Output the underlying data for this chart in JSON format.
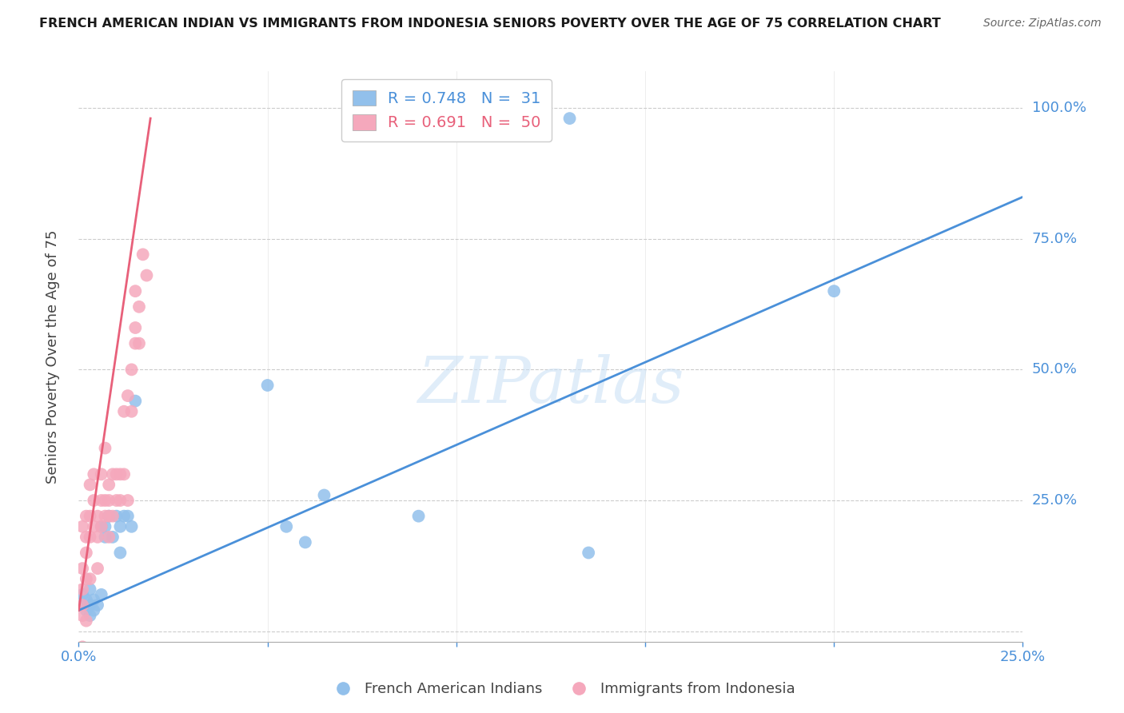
{
  "title": "FRENCH AMERICAN INDIAN VS IMMIGRANTS FROM INDONESIA SENIORS POVERTY OVER THE AGE OF 75 CORRELATION CHART",
  "source": "Source: ZipAtlas.com",
  "ylabel": "Seniors Poverty Over the Age of 75",
  "xlim": [
    0,
    0.25
  ],
  "ylim": [
    -0.02,
    1.07
  ],
  "xticks": [
    0.0,
    0.05,
    0.1,
    0.15,
    0.2,
    0.25
  ],
  "yticks": [
    0.0,
    0.25,
    0.5,
    0.75,
    1.0
  ],
  "ytick_labels": [
    "",
    "25.0%",
    "50.0%",
    "75.0%",
    "100.0%"
  ],
  "watermark": "ZIPatlas",
  "blue_color": "#92C0EB",
  "pink_color": "#F5A8BC",
  "blue_line_color": "#4A90D9",
  "pink_line_color": "#E8607A",
  "blue_R": 0.748,
  "blue_N": 31,
  "pink_R": 0.691,
  "pink_N": 50,
  "blue_label": "French American Indians",
  "pink_label": "Immigrants from Indonesia",
  "blue_x": [
    0.001,
    0.001,
    0.002,
    0.002,
    0.003,
    0.003,
    0.003,
    0.004,
    0.004,
    0.005,
    0.006,
    0.006,
    0.007,
    0.007,
    0.008,
    0.009,
    0.01,
    0.011,
    0.011,
    0.012,
    0.013,
    0.014,
    0.015,
    0.05,
    0.055,
    0.06,
    0.065,
    0.09,
    0.2,
    0.13,
    0.135
  ],
  "blue_y": [
    0.05,
    0.07,
    0.04,
    0.06,
    0.05,
    0.08,
    0.03,
    0.06,
    0.04,
    0.05,
    0.07,
    0.2,
    0.2,
    0.18,
    0.22,
    0.18,
    0.22,
    0.2,
    0.15,
    0.22,
    0.22,
    0.2,
    0.44,
    0.47,
    0.2,
    0.17,
    0.26,
    0.22,
    0.65,
    0.98,
    0.15
  ],
  "pink_x": [
    0.001,
    0.001,
    0.001,
    0.001,
    0.002,
    0.002,
    0.002,
    0.002,
    0.003,
    0.003,
    0.003,
    0.003,
    0.004,
    0.004,
    0.004,
    0.005,
    0.005,
    0.005,
    0.006,
    0.006,
    0.006,
    0.007,
    0.007,
    0.007,
    0.008,
    0.008,
    0.008,
    0.008,
    0.009,
    0.009,
    0.01,
    0.01,
    0.011,
    0.011,
    0.012,
    0.012,
    0.013,
    0.013,
    0.014,
    0.014,
    0.015,
    0.015,
    0.015,
    0.016,
    0.016,
    0.017,
    0.018,
    0.002,
    0.001,
    0.001
  ],
  "pink_y": [
    0.05,
    0.08,
    0.12,
    0.2,
    0.1,
    0.15,
    0.18,
    0.22,
    0.18,
    0.22,
    0.28,
    0.1,
    0.2,
    0.25,
    0.3,
    0.22,
    0.18,
    0.12,
    0.25,
    0.2,
    0.3,
    0.25,
    0.22,
    0.35,
    0.28,
    0.22,
    0.18,
    0.25,
    0.3,
    0.22,
    0.25,
    0.3,
    0.3,
    0.25,
    0.42,
    0.3,
    0.45,
    0.25,
    0.5,
    0.42,
    0.58,
    0.55,
    0.65,
    0.62,
    0.55,
    0.72,
    0.68,
    0.02,
    -0.03,
    0.03
  ],
  "blue_line_x0": 0.0,
  "blue_line_y0": 0.04,
  "blue_line_x1": 0.25,
  "blue_line_y1": 0.83,
  "pink_line_x0": 0.0,
  "pink_line_y0": 0.04,
  "pink_line_x1": 0.019,
  "pink_line_y1": 0.98
}
